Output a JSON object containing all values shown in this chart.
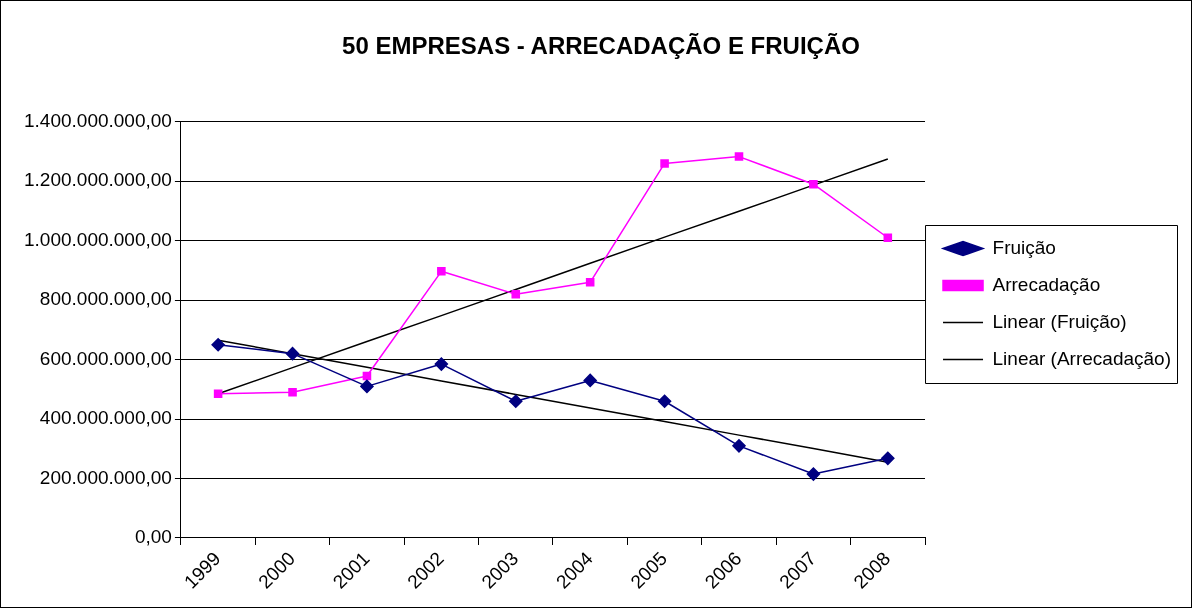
{
  "chart_data": {
    "type": "line",
    "title": "50 EMPRESAS - ARRECADAÇÃO E FRUIÇÃO",
    "categories": [
      "1999",
      "2000",
      "2001",
      "2002",
      "2003",
      "2004",
      "2005",
      "2006",
      "2007",
      "2008"
    ],
    "series": [
      {
        "name": "Fruição",
        "color": "#000080",
        "marker": "diamond",
        "values": [
          650000000,
          620000000,
          510000000,
          585000000,
          460000000,
          530000000,
          460000000,
          310000000,
          215000000,
          268000000
        ]
      },
      {
        "name": "Arrecadação",
        "color": "#ff00ff",
        "marker": "square",
        "values": [
          485000000,
          490000000,
          545000000,
          897000000,
          820000000,
          860000000,
          1260000000,
          1283000000,
          1190000000,
          1010000000
        ]
      },
      {
        "name": "Linear (Fruição)",
        "color": "#000000",
        "marker": "none",
        "values": [
          665000000,
          620000000,
          574000000,
          528000000,
          483000000,
          437000000,
          392000000,
          346000000,
          301000000,
          255000000
        ]
      },
      {
        "name": "Linear (Arrecadação)",
        "color": "#000000",
        "marker": "none",
        "values": [
          485000000,
          573000000,
          661000000,
          748000000,
          836000000,
          924000000,
          1012000000,
          1099000000,
          1187000000,
          1275000000
        ]
      }
    ],
    "ylim": [
      0,
      1400000000
    ],
    "yticks": [
      {
        "value": 0,
        "label": "0,00"
      },
      {
        "value": 200000000,
        "label": "200.000.000,00"
      },
      {
        "value": 400000000,
        "label": "400.000.000,00"
      },
      {
        "value": 600000000,
        "label": "600.000.000,00"
      },
      {
        "value": 800000000,
        "label": "800.000.000,00"
      },
      {
        "value": 1000000000,
        "label": "1.000.000.000,00"
      },
      {
        "value": 1200000000,
        "label": "1.200.000.000,00"
      },
      {
        "value": 1400000000,
        "label": "1.400.000.000,00"
      }
    ],
    "grid": "y",
    "legend": "right",
    "line_style": "solid"
  }
}
